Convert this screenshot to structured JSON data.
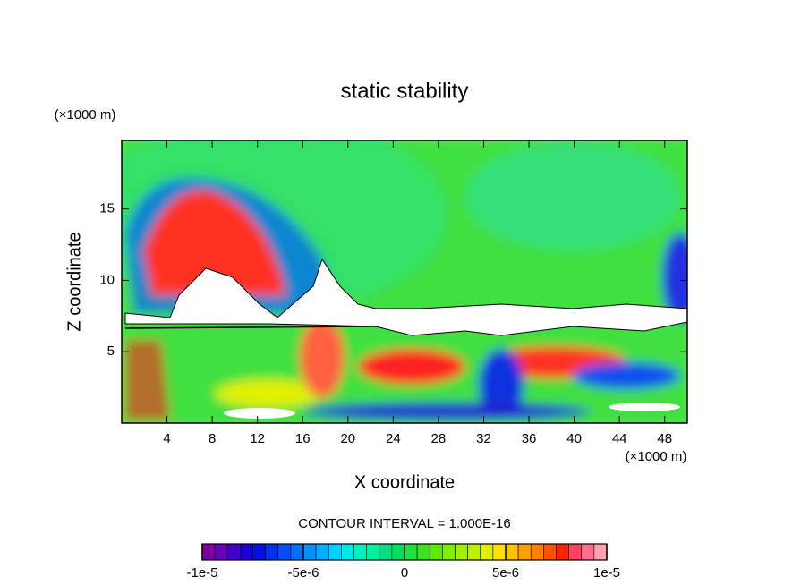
{
  "chart_data": {
    "type": "heatmap",
    "title": "static stability",
    "xlabel": "X coordinate",
    "ylabel": "Z coordinate",
    "x_unit_label": "(×1000 m)",
    "y_unit_label": "(×1000 m)",
    "xlim": [
      0,
      50
    ],
    "xticks": [
      4,
      8,
      12,
      16,
      20,
      24,
      28,
      32,
      36,
      40,
      44,
      48
    ],
    "ylim": [
      0,
      19.8
    ],
    "yticks": [
      5,
      10,
      15
    ],
    "annotation": "CONTOUR INTERVAL = 1.000E-16",
    "colorbar": {
      "lim": [
        -1e-05,
        1e-05
      ],
      "ticks": [
        {
          "value": -1e-05,
          "label": "-1e-5"
        },
        {
          "value": -5e-06,
          "label": "-5e-6"
        },
        0,
        {
          "value": 5e-06,
          "label": "5e-6"
        },
        {
          "value": 1e-05,
          "label": "1e-5"
        }
      ],
      "colors": [
        "#7f00a0",
        "#6a00b8",
        "#4000c8",
        "#1a00d8",
        "#0010e0",
        "#0030f0",
        "#0050ff",
        "#0070ff",
        "#0090ff",
        "#00b0ff",
        "#00d0ff",
        "#00e8e8",
        "#00f0c0",
        "#00f0a0",
        "#00e080",
        "#00e060",
        "#20e040",
        "#40e020",
        "#60e800",
        "#80f000",
        "#a0f000",
        "#c0f000",
        "#e0f000",
        "#ffe000",
        "#ffc000",
        "#ffa000",
        "#ff8000",
        "#ff5000",
        "#ff2000",
        "#ff4060",
        "#ff7090",
        "#ffa0b0"
      ]
    }
  }
}
